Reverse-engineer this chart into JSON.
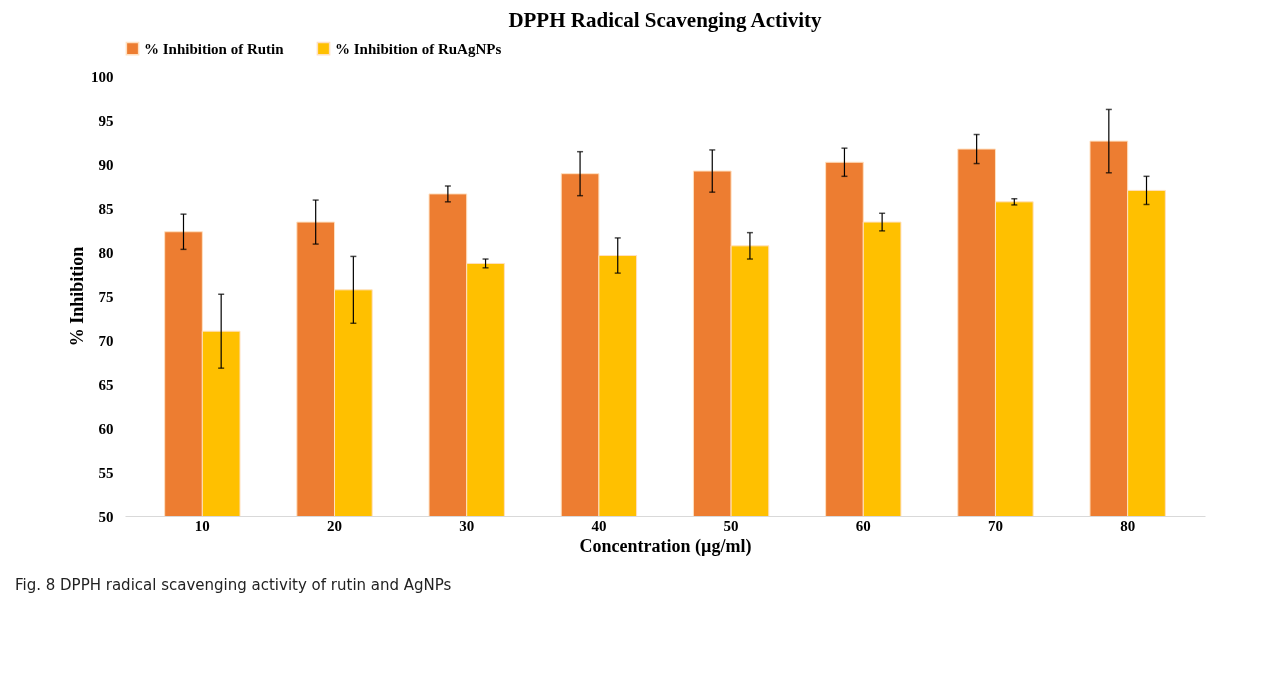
{
  "chart_data": {
    "type": "bar",
    "title": "DPPH Radical Scavenging Activity",
    "xlabel": "Concentration (µg/ml)",
    "ylabel": "% Inhibition",
    "categories": [
      "10",
      "20",
      "30",
      "40",
      "50",
      "60",
      "70",
      "80"
    ],
    "series": [
      {
        "name": "% Inhibition of Rutin",
        "color": "#ed7d31",
        "values": [
          82.3,
          83.4,
          86.6,
          88.9,
          89.2,
          90.2,
          91.7,
          92.6
        ],
        "errors": [
          2.0,
          2.5,
          0.9,
          2.5,
          2.4,
          1.6,
          1.65,
          3.6
        ]
      },
      {
        "name": "% Inhibition of RuAgNPs",
        "color": "#ffc000",
        "values": [
          71.0,
          75.7,
          78.7,
          79.6,
          80.7,
          83.4,
          85.7,
          87.0
        ],
        "errors": [
          4.2,
          3.8,
          0.5,
          2.0,
          1.5,
          1.0,
          0.35,
          1.6
        ]
      }
    ],
    "ylim": [
      50,
      100
    ],
    "yticks": [
      50,
      55,
      60,
      65,
      70,
      75,
      80,
      85,
      90,
      95,
      100
    ],
    "grid": false,
    "legend": "top",
    "annotations": [
      "Fig. 8  DPPH radical scavenging activity of rutin and AgNPs"
    ]
  }
}
